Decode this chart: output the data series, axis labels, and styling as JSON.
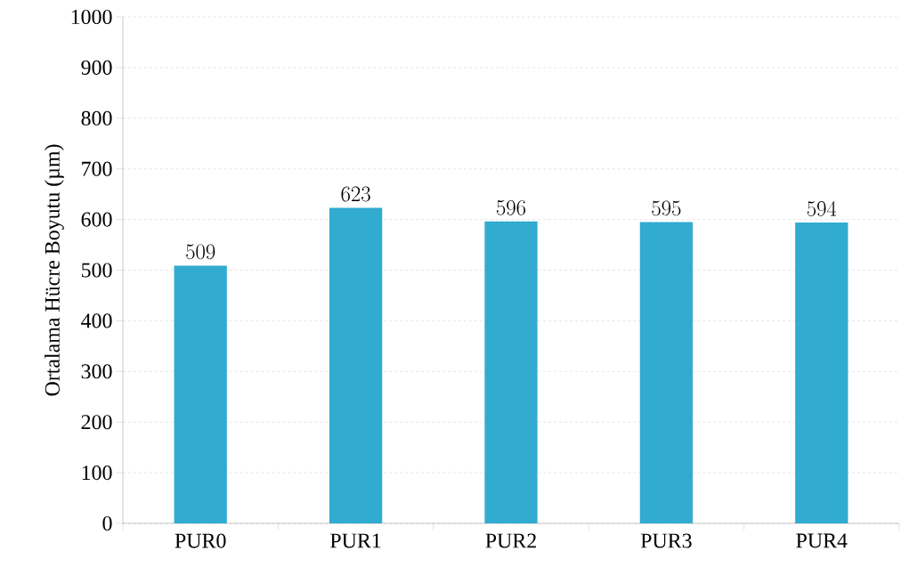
{
  "chart_data": {
    "type": "bar",
    "ylabel": "Ortalama Hücre Boyutu (µm)",
    "categories": [
      "PUR0",
      "PUR1",
      "PUR2",
      "PUR3",
      "PUR4"
    ],
    "values": [
      509,
      623,
      596,
      595,
      594
    ],
    "color": "#31abd0",
    "ylim": [
      0,
      1000
    ],
    "yticks": [
      0,
      100,
      200,
      300,
      400,
      500,
      600,
      700,
      800,
      900,
      1000
    ],
    "grid": "y",
    "data_labels": true
  }
}
